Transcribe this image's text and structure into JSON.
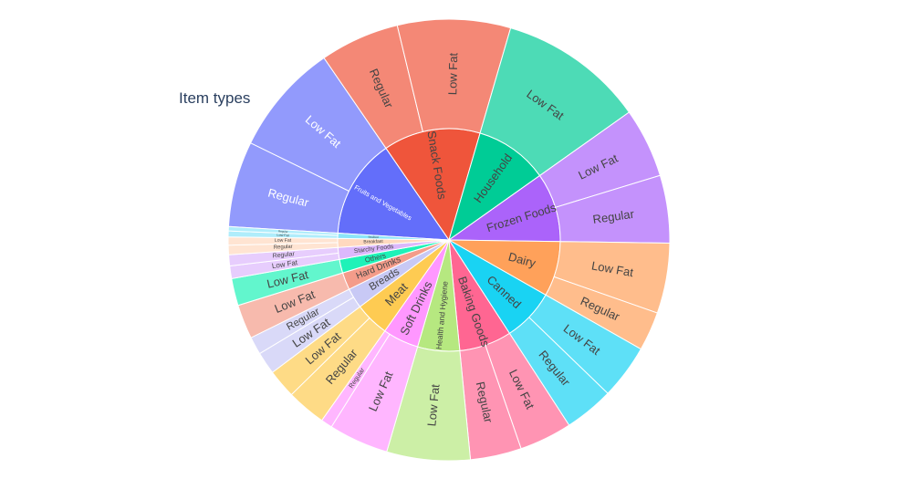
{
  "chart_data": {
    "type": "sunburst",
    "title": "Item types",
    "total": 8523,
    "categories": [
      {
        "name": "Fruits and Vegetables",
        "color": "#636efa",
        "label_color": "#ffffff",
        "children": [
          {
            "name": "Regular",
            "value": 534
          },
          {
            "name": "Low Fat",
            "value": 698
          }
        ]
      },
      {
        "name": "Snack Foods",
        "color": "#ef553b",
        "label_color": "#444444",
        "children": [
          {
            "name": "Regular",
            "value": 495
          },
          {
            "name": "Low Fat",
            "value": 705
          }
        ]
      },
      {
        "name": "Household",
        "color": "#00cc96",
        "label_color": "#444444",
        "children": [
          {
            "name": "Low Fat",
            "value": 910
          }
        ]
      },
      {
        "name": "Frozen Foods",
        "color": "#ab63fa",
        "label_color": "#444444",
        "children": [
          {
            "name": "Low Fat",
            "value": 434
          },
          {
            "name": "Regular",
            "value": 422
          }
        ]
      },
      {
        "name": "Dairy",
        "color": "#ffa15a",
        "label_color": "#444444",
        "children": [
          {
            "name": "Low Fat",
            "value": 438
          },
          {
            "name": "Regular",
            "value": 244
          }
        ]
      },
      {
        "name": "Canned",
        "color": "#19d3f3",
        "label_color": "#444444",
        "children": [
          {
            "name": "Low Fat",
            "value": 341
          },
          {
            "name": "Regular",
            "value": 308
          }
        ]
      },
      {
        "name": "Baking Goods",
        "color": "#ff6692",
        "label_color": "#444444",
        "children": [
          {
            "name": "Low Fat",
            "value": 329
          },
          {
            "name": "Regular",
            "value": 319
          }
        ]
      },
      {
        "name": "Health and Hygiene",
        "color": "#b6e880",
        "label_color": "#444444",
        "children": [
          {
            "name": "Low Fat",
            "value": 520
          }
        ]
      },
      {
        "name": "Soft Drinks",
        "color": "#ff97ff",
        "label_color": "#444444",
        "children": [
          {
            "name": "Low Fat",
            "value": 374
          },
          {
            "name": "Regular",
            "value": 71
          }
        ]
      },
      {
        "name": "Meat",
        "color": "#fecb52",
        "label_color": "#444444",
        "children": [
          {
            "name": "Regular",
            "value": 245
          },
          {
            "name": "Low Fat",
            "value": 180
          }
        ]
      },
      {
        "name": "Breads",
        "color": "#c8c9f5",
        "label_color": "#444444",
        "children": [
          {
            "name": "Low Fat",
            "value": 140
          },
          {
            "name": "Regular",
            "value": 111
          }
        ]
      },
      {
        "name": "Hard Drinks",
        "color": "#f49c8a",
        "label_color": "#444444",
        "children": [
          {
            "name": "Low Fat",
            "value": 214
          }
        ]
      },
      {
        "name": "Others",
        "color": "#1ef2b8",
        "label_color": "#444444",
        "children": [
          {
            "name": "Low Fat",
            "value": 169
          }
        ]
      },
      {
        "name": "Starchy Foods",
        "color": "#dcb8fc",
        "label_color": "#444444",
        "children": [
          {
            "name": "Low Fat",
            "value": 79
          },
          {
            "name": "Regular",
            "value": 69
          }
        ]
      },
      {
        "name": "Breakfast",
        "color": "#ffd9bf",
        "label_color": "#444444",
        "children": [
          {
            "name": "Regular",
            "value": 59
          },
          {
            "name": "Low Fat",
            "value": 51
          }
        ]
      },
      {
        "name": "Seafood",
        "color": "#8ce5f9",
        "label_color": "#444444",
        "children": [
          {
            "name": "Low Fat",
            "value": 37
          },
          {
            "name": "Regular",
            "value": 27
          }
        ]
      }
    ]
  }
}
